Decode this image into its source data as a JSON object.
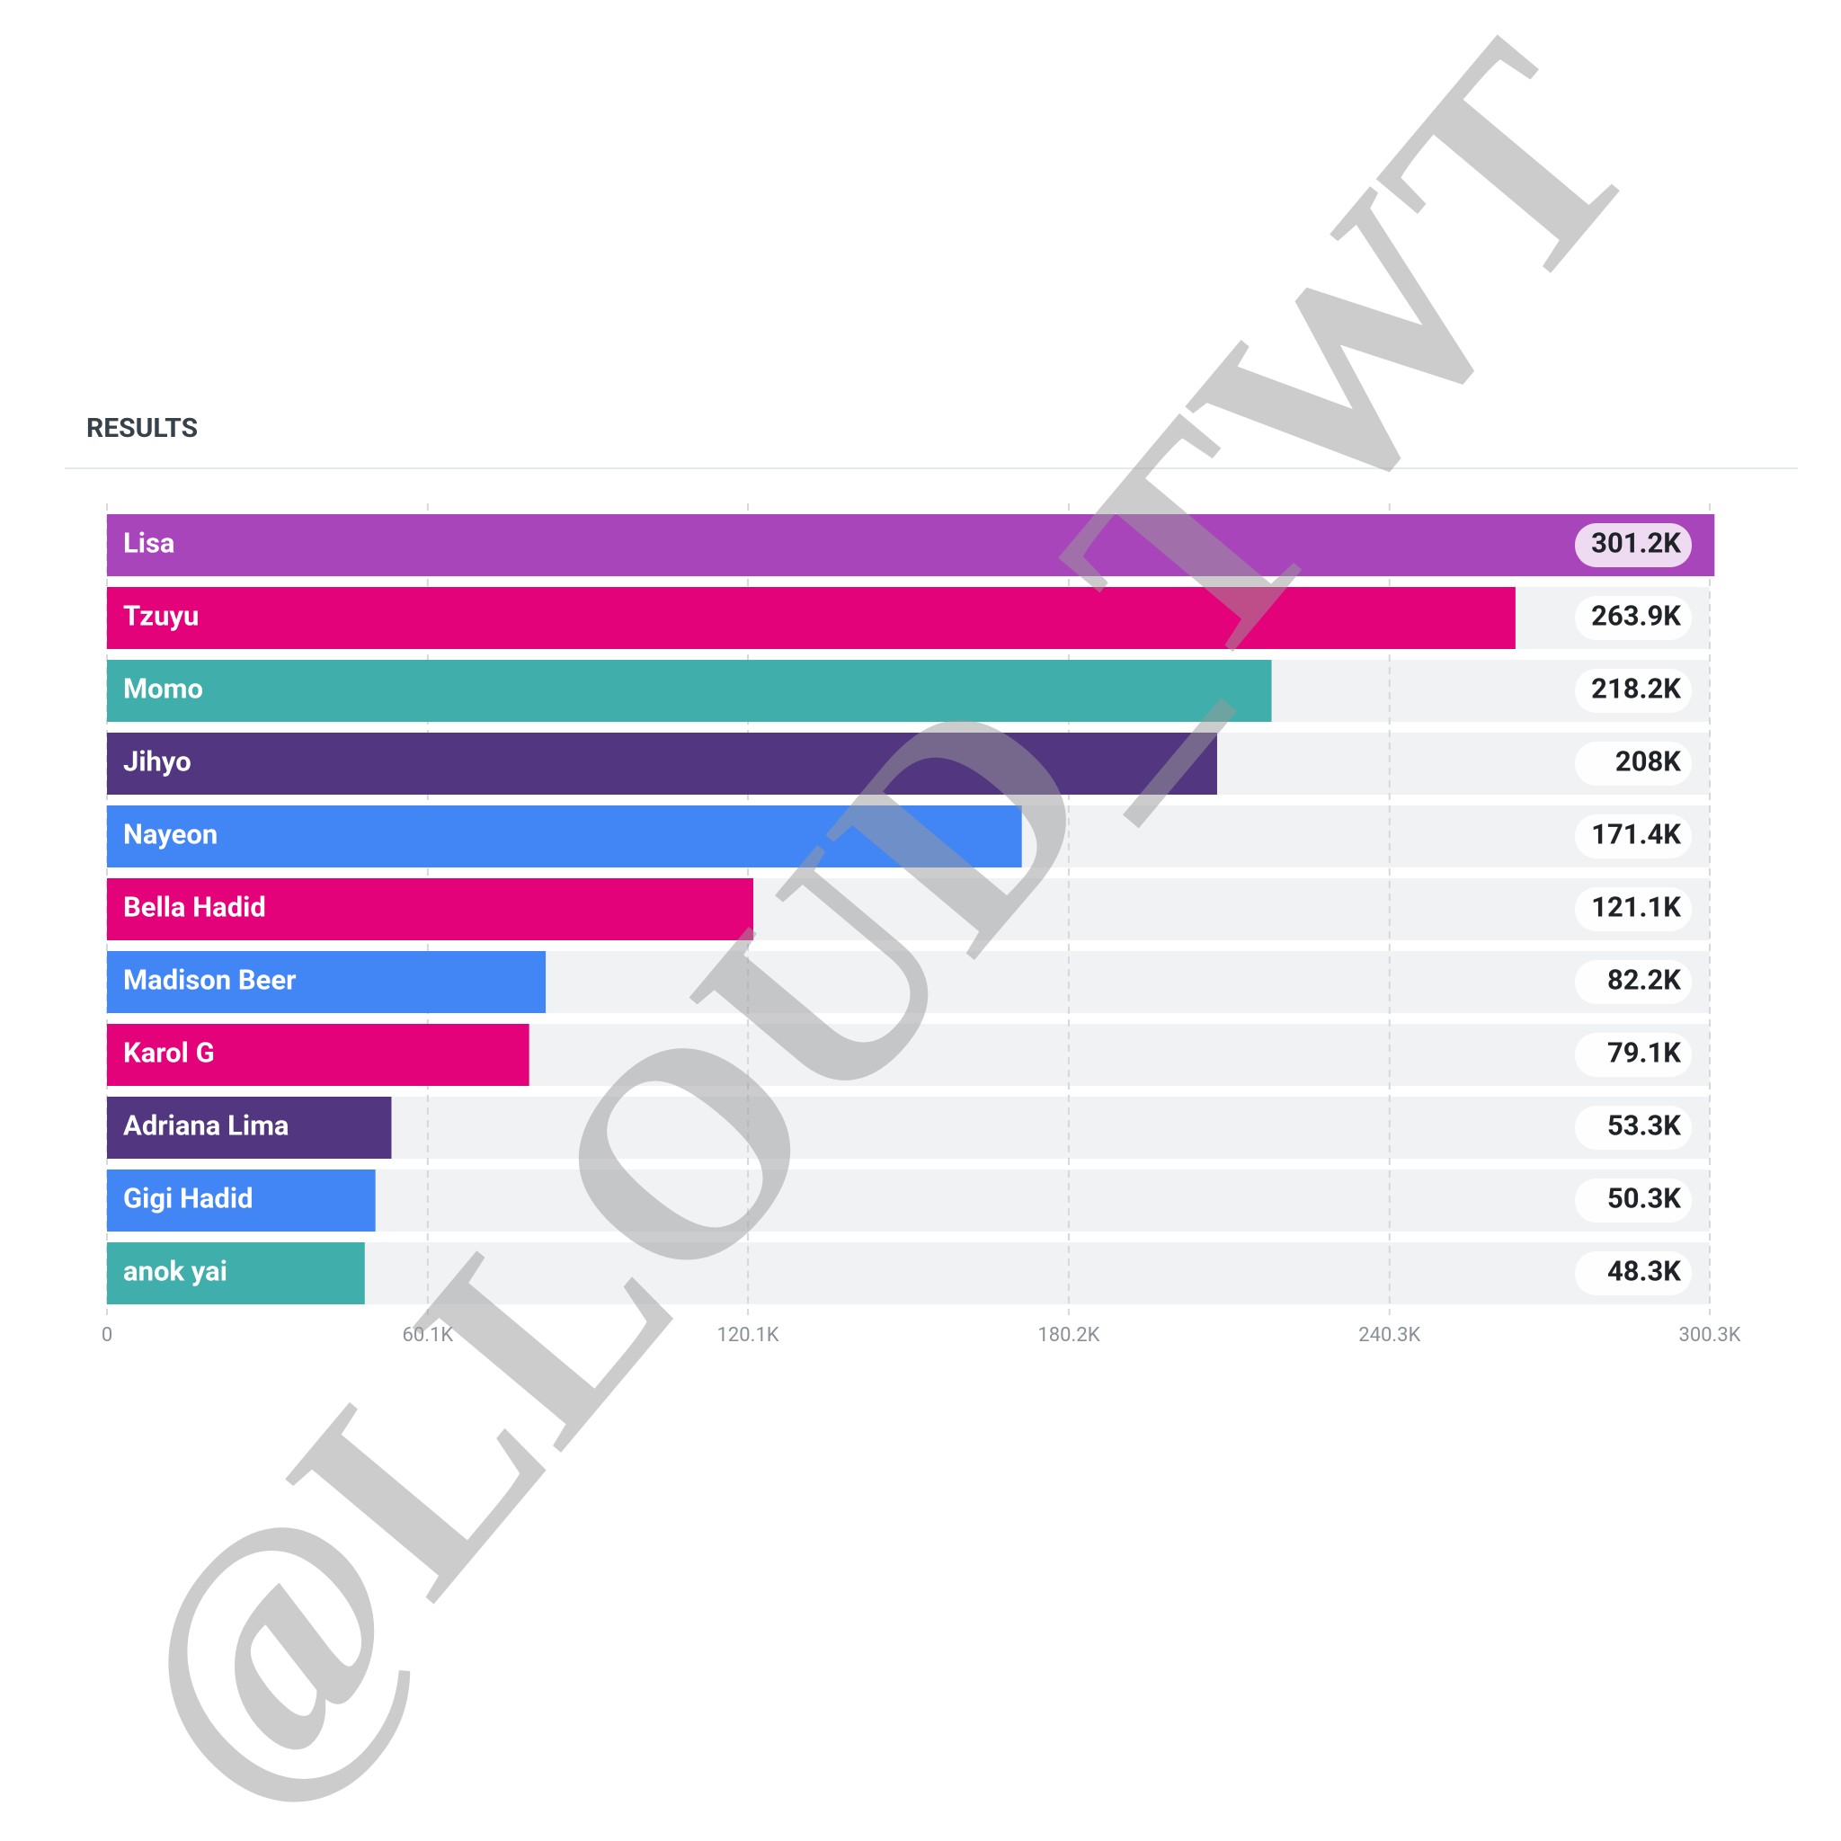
{
  "chart_data": {
    "type": "bar",
    "orientation": "horizontal",
    "title": "RESULTS",
    "categories": [
      "Lisa",
      "Tzuyu",
      "Momo",
      "Jihyo",
      "Nayeon",
      "Bella Hadid",
      "Madison Beer",
      "Karol G",
      "Adriana Lima",
      "Gigi Hadid",
      "anok yai"
    ],
    "values": [
      301200,
      263900,
      218200,
      208000,
      171400,
      121100,
      82200,
      79100,
      53300,
      50300,
      48300
    ],
    "value_labels": [
      "301.2K",
      "263.9K",
      "218.2K",
      "208K",
      "171.4K",
      "121.1K",
      "82.2K",
      "79.1K",
      "53.3K",
      "50.3K",
      "48.3K"
    ],
    "colors": [
      "#a845bb",
      "#e3027a",
      "#40aeab",
      "#533680",
      "#4285f4",
      "#e3027a",
      "#4285f4",
      "#e3027a",
      "#533680",
      "#4285f4",
      "#40aeab"
    ],
    "xlim": [
      0,
      300300
    ],
    "xticks": [
      0,
      {
        "value": 60100,
        "label": "60.1K"
      },
      {
        "value": 120100,
        "label": "120.1K"
      },
      {
        "value": 180200,
        "label": "180.2K"
      },
      {
        "value": 240300,
        "label": "240.3K"
      },
      {
        "value": 300300,
        "label": "300.3K"
      }
    ],
    "grid": true,
    "watermark": "@LLOUD_TWT"
  }
}
